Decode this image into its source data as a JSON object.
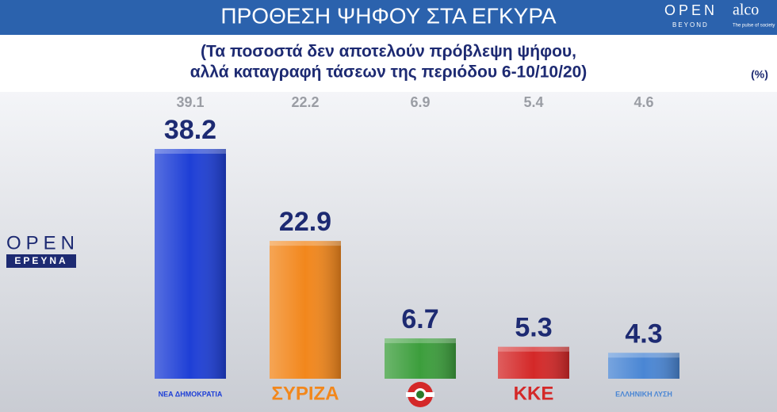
{
  "chart_data": {
    "type": "bar",
    "title": "ΠΡΟΘΕΣΗ ΨΗΦΟΥ ΣΤΑ ΕΓΚΥΡΑ",
    "subtitle": [
      "(Τα ποσοστά δεν αποτελούν πρόβλεψη ψήφου,",
      "αλλά καταγραφή τάσεων της περιόδου 6-10/10/20)"
    ],
    "unit_label": "(%)",
    "categories": [
      "ΝΕΑ ΔΗΜΟΚΡΑΤΙΑ",
      "ΣΥΡΙΖΑ",
      null,
      "ΚΚΕ",
      "ΕΛΛΗΝΙΚΗ ΛΥΣΗ"
    ],
    "values": [
      38.2,
      22.9,
      6.7,
      5.3,
      4.3
    ],
    "previous_values": [
      39.1,
      22.2,
      6.9,
      5.4,
      4.6
    ],
    "colors": [
      "#1e3fd6",
      "#f2871c",
      "#3c9e3c",
      "#d42828",
      "#4a86d4"
    ],
    "branding": {
      "channel": "OPEN",
      "channel_sub": "BEYOND",
      "pollster": "alco",
      "pollster_sub": "The pulse of society",
      "left_logo": "OPEN",
      "left_logo_sub": "ΕΡΕΥΝΑ"
    }
  }
}
